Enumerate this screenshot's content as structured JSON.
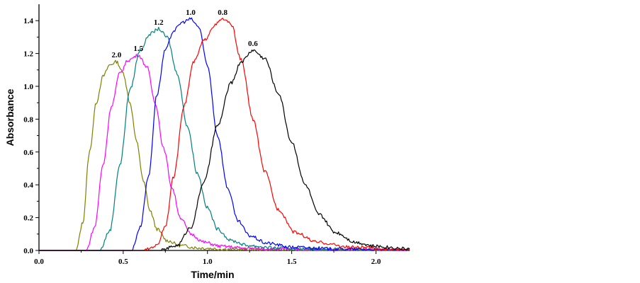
{
  "chart_data": {
    "type": "line",
    "title": "",
    "xlabel": "Time/min",
    "ylabel": "Absorbance",
    "xlim": [
      0.0,
      2.2
    ],
    "ylim": [
      0.0,
      1.5
    ],
    "xticks": [
      0.0,
      0.5,
      1.0,
      1.5,
      2.0
    ],
    "xtick_labels": [
      "0.0",
      "0.5",
      "1.0",
      "1.5",
      "2.0"
    ],
    "yticks": [
      0.0,
      0.2,
      0.4,
      0.6,
      0.8,
      1.0,
      1.2,
      1.4
    ],
    "ytick_labels": [
      "0.0",
      "0.2",
      "0.4",
      "0.6",
      "0.8",
      "1.0",
      "1.2",
      "1.4"
    ],
    "grid": false,
    "series": [
      {
        "name": "2.0",
        "label": "2.0",
        "color": "#808000",
        "onset": 0.22,
        "peak_x": 0.46,
        "peak_y": 1.15,
        "x": [
          0.0,
          0.22,
          0.26,
          0.3,
          0.34,
          0.38,
          0.42,
          0.46,
          0.5,
          0.54,
          0.58,
          0.62,
          0.66,
          0.7,
          0.76,
          0.84,
          0.95,
          1.1,
          1.4,
          2.2
        ],
        "y": [
          0.0,
          0.0,
          0.17,
          0.6,
          0.9,
          1.06,
          1.13,
          1.15,
          1.08,
          0.9,
          0.66,
          0.42,
          0.24,
          0.13,
          0.06,
          0.03,
          0.015,
          0.008,
          0.004,
          0.0
        ]
      },
      {
        "name": "1.5",
        "label": "1.5",
        "color": "#ff00ff",
        "onset": 0.28,
        "peak_x": 0.59,
        "peak_y": 1.19,
        "x": [
          0.0,
          0.28,
          0.33,
          0.38,
          0.43,
          0.48,
          0.53,
          0.59,
          0.64,
          0.69,
          0.74,
          0.79,
          0.84,
          0.9,
          0.98,
          1.08,
          1.25,
          1.6,
          2.2
        ],
        "y": [
          0.0,
          0.0,
          0.14,
          0.52,
          0.88,
          1.08,
          1.16,
          1.19,
          1.12,
          0.9,
          0.62,
          0.38,
          0.2,
          0.1,
          0.05,
          0.025,
          0.012,
          0.005,
          0.0
        ]
      },
      {
        "name": "1.2",
        "label": "1.2",
        "color": "#008080",
        "onset": 0.36,
        "peak_x": 0.71,
        "peak_y": 1.35,
        "x": [
          0.0,
          0.36,
          0.42,
          0.48,
          0.54,
          0.6,
          0.66,
          0.71,
          0.76,
          0.82,
          0.88,
          0.94,
          1.0,
          1.06,
          1.14,
          1.24,
          1.4,
          1.7,
          2.2
        ],
        "y": [
          0.0,
          0.0,
          0.12,
          0.52,
          0.98,
          1.22,
          1.32,
          1.35,
          1.3,
          1.08,
          0.76,
          0.47,
          0.26,
          0.13,
          0.06,
          0.03,
          0.015,
          0.006,
          0.0
        ]
      },
      {
        "name": "1.0",
        "label": "1.0",
        "color": "#0000ff",
        "onset": 0.55,
        "peak_x": 0.9,
        "peak_y": 1.41,
        "x": [
          0.0,
          0.55,
          0.6,
          0.65,
          0.7,
          0.75,
          0.8,
          0.85,
          0.9,
          0.95,
          1.0,
          1.06,
          1.12,
          1.18,
          1.25,
          1.35,
          1.5,
          1.8,
          2.2
        ],
        "y": [
          0.0,
          0.0,
          0.14,
          0.45,
          0.95,
          1.22,
          1.34,
          1.39,
          1.41,
          1.36,
          1.12,
          0.7,
          0.38,
          0.18,
          0.09,
          0.045,
          0.02,
          0.008,
          0.0
        ]
      },
      {
        "name": "0.8",
        "label": "0.8",
        "color": "#ff0000",
        "onset": 0.62,
        "peak_x": 1.09,
        "peak_y": 1.41,
        "x": [
          0.0,
          0.62,
          0.7,
          0.75,
          0.8,
          0.86,
          0.92,
          0.98,
          1.04,
          1.09,
          1.14,
          1.2,
          1.27,
          1.34,
          1.42,
          1.52,
          1.65,
          1.85,
          2.2
        ],
        "y": [
          0.0,
          0.0,
          0.03,
          0.15,
          0.45,
          0.88,
          1.15,
          1.28,
          1.37,
          1.41,
          1.38,
          1.16,
          0.8,
          0.48,
          0.25,
          0.11,
          0.05,
          0.02,
          0.0
        ]
      },
      {
        "name": "0.6",
        "label": "0.6",
        "color": "#000000",
        "onset": 0.72,
        "peak_x": 1.27,
        "peak_y": 1.22,
        "x": [
          0.0,
          0.72,
          0.82,
          0.9,
          0.98,
          1.06,
          1.14,
          1.2,
          1.27,
          1.34,
          1.42,
          1.5,
          1.58,
          1.66,
          1.76,
          1.88,
          2.0,
          2.2
        ],
        "y": [
          0.0,
          0.0,
          0.03,
          0.14,
          0.42,
          0.76,
          1.02,
          1.15,
          1.22,
          1.17,
          0.96,
          0.66,
          0.4,
          0.22,
          0.11,
          0.05,
          0.025,
          0.01
        ]
      }
    ]
  }
}
